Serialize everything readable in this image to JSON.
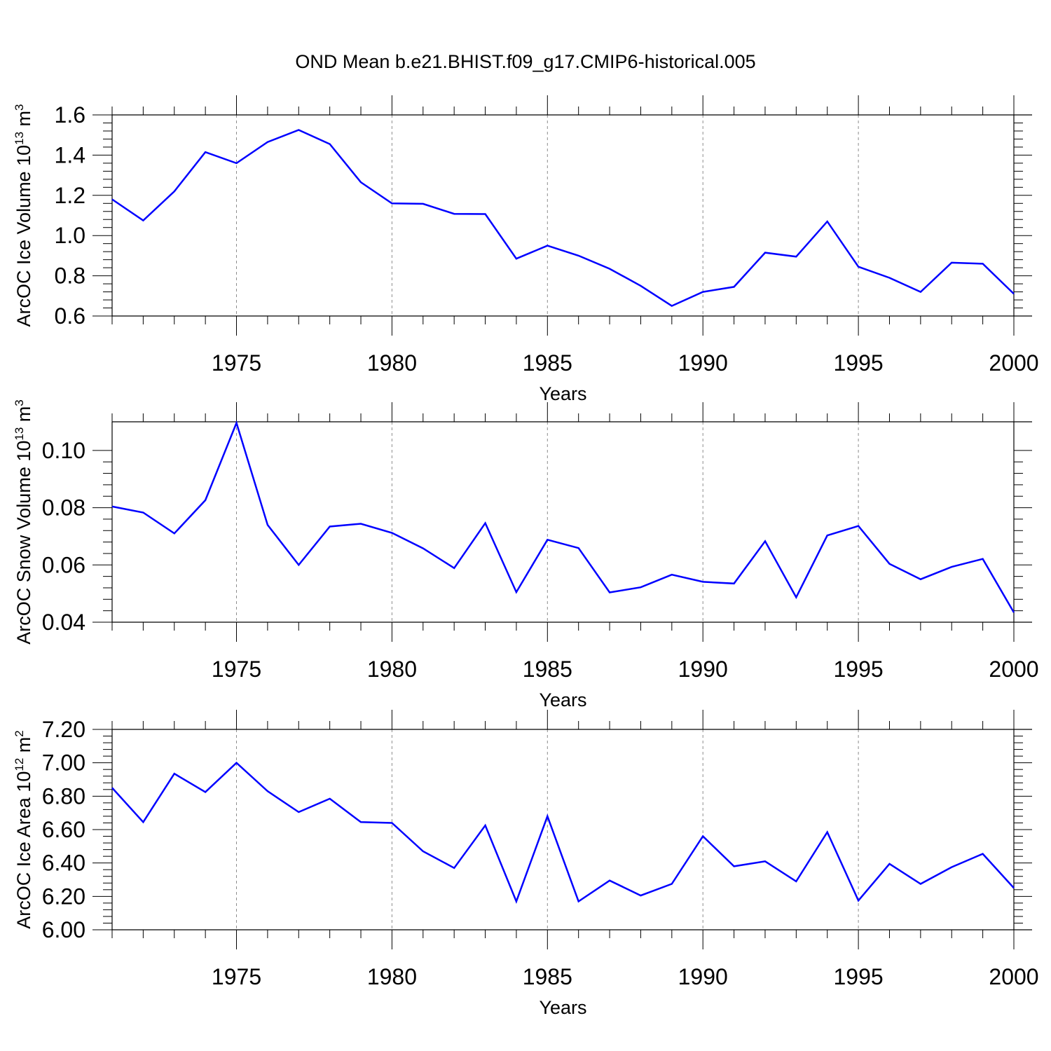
{
  "title": "OND Mean b.e21.BHIST.f09_g17.CMIP6-historical.005",
  "colors": {
    "series": "#0000ff",
    "axis": "#000000",
    "grid": "#8c8c8c"
  },
  "chart_data": [
    {
      "type": "line",
      "ylabel_main": "ArcOC Ice Volume 10",
      "ylabel_exp": "13",
      "ylabel_unit": " m",
      "ylabel_unit_exp": "3",
      "xlabel": "Years",
      "xlim": [
        1971,
        2000
      ],
      "ylim": [
        0.6,
        1.6
      ],
      "yticks": [
        0.6,
        0.8,
        1.0,
        1.2,
        1.4,
        1.6
      ],
      "ytick_labels": [
        "0.6",
        "0.8",
        "1.0",
        "1.2",
        "1.4",
        "1.6"
      ],
      "xticks": [
        1975,
        1980,
        1985,
        1990,
        1995,
        2000
      ],
      "xtick_labels": [
        "1975",
        "1980",
        "1985",
        "1990",
        "1995",
        "2000"
      ],
      "grid": "vertical dashed at major x ticks",
      "x": [
        1971,
        1972,
        1973,
        1974,
        1975,
        1976,
        1977,
        1978,
        1979,
        1980,
        1981,
        1982,
        1983,
        1984,
        1985,
        1986,
        1987,
        1988,
        1989,
        1990,
        1991,
        1992,
        1993,
        1994,
        1995,
        1996,
        1997,
        1998,
        1999,
        2000
      ],
      "values": [
        1.18,
        1.075,
        1.22,
        1.415,
        1.36,
        1.465,
        1.525,
        1.455,
        1.265,
        1.16,
        1.158,
        1.108,
        1.107,
        0.885,
        0.95,
        0.9,
        0.835,
        0.75,
        0.65,
        0.72,
        0.745,
        0.915,
        0.895,
        1.07,
        0.845,
        0.79,
        0.72,
        0.865,
        0.86,
        0.71
      ]
    },
    {
      "type": "line",
      "ylabel_main": "ArcOC Snow Volume 10",
      "ylabel_exp": "13",
      "ylabel_unit": " m",
      "ylabel_unit_exp": "3",
      "xlabel": "Years",
      "xlim": [
        1971,
        2000
      ],
      "ylim": [
        0.04,
        0.11
      ],
      "yticks": [
        0.04,
        0.06,
        0.08,
        0.1
      ],
      "ytick_labels": [
        "0.04",
        "0.06",
        "0.08",
        "0.10"
      ],
      "xticks": [
        1975,
        1980,
        1985,
        1990,
        1995,
        2000
      ],
      "xtick_labels": [
        "1975",
        "1980",
        "1985",
        "1990",
        "1995",
        "2000"
      ],
      "grid": "vertical dashed at major x ticks",
      "x": [
        1971,
        1972,
        1973,
        1974,
        1975,
        1976,
        1977,
        1978,
        1979,
        1980,
        1981,
        1982,
        1983,
        1984,
        1985,
        1986,
        1987,
        1988,
        1989,
        1990,
        1991,
        1992,
        1993,
        1994,
        1995,
        1996,
        1997,
        1998,
        1999,
        2000
      ],
      "values": [
        0.0804,
        0.0783,
        0.071,
        0.0826,
        0.1096,
        0.074,
        0.06,
        0.0734,
        0.0744,
        0.0712,
        0.0658,
        0.0589,
        0.0746,
        0.0505,
        0.0688,
        0.0659,
        0.0504,
        0.0522,
        0.0566,
        0.0541,
        0.0535,
        0.0683,
        0.0487,
        0.0703,
        0.0736,
        0.0604,
        0.055,
        0.0593,
        0.0621,
        0.0434
      ]
    },
    {
      "type": "line",
      "ylabel_main": "ArcOC Ice Area 10",
      "ylabel_exp": "12",
      "ylabel_unit": " m",
      "ylabel_unit_exp": "2",
      "xlabel": "Years",
      "xlim": [
        1971,
        2000
      ],
      "ylim": [
        6.0,
        7.2
      ],
      "yticks": [
        6.0,
        6.2,
        6.4,
        6.6,
        6.8,
        7.0,
        7.2
      ],
      "ytick_labels": [
        "6.00",
        "6.20",
        "6.40",
        "6.60",
        "6.80",
        "7.00",
        "7.20"
      ],
      "xticks": [
        1975,
        1980,
        1985,
        1990,
        1995,
        2000
      ],
      "xtick_labels": [
        "1975",
        "1980",
        "1985",
        "1990",
        "1995",
        "2000"
      ],
      "grid": "vertical dashed at major x ticks",
      "x": [
        1971,
        1972,
        1973,
        1974,
        1975,
        1976,
        1977,
        1978,
        1979,
        1980,
        1981,
        1982,
        1983,
        1984,
        1985,
        1986,
        1987,
        1988,
        1989,
        1990,
        1991,
        1992,
        1993,
        1994,
        1995,
        1996,
        1997,
        1998,
        1999,
        2000
      ],
      "values": [
        6.85,
        6.645,
        6.935,
        6.825,
        7.0,
        6.83,
        6.705,
        6.785,
        6.645,
        6.64,
        6.47,
        6.37,
        6.625,
        6.17,
        6.68,
        6.17,
        6.295,
        6.205,
        6.275,
        6.56,
        6.38,
        6.41,
        6.29,
        6.585,
        6.175,
        6.395,
        6.275,
        6.375,
        6.455,
        6.25
      ]
    }
  ]
}
